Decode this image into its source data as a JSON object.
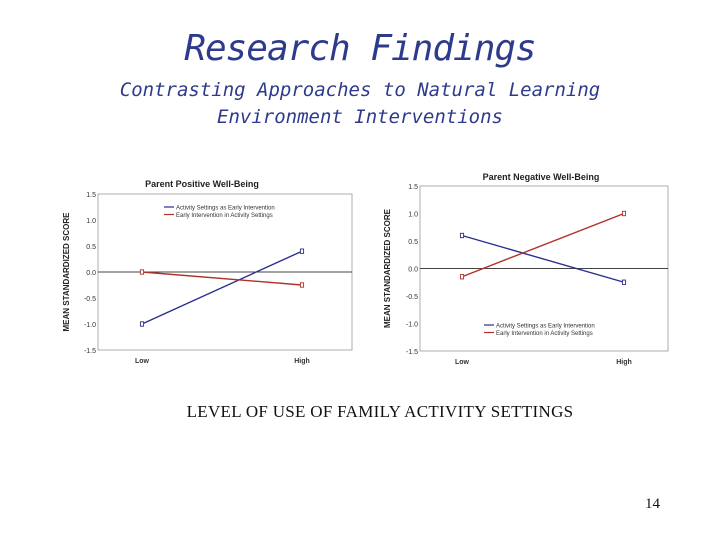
{
  "slide": {
    "title": "Research Findings",
    "subtitle_line1": "Contrasting Approaches to Natural Learning",
    "subtitle_line2": "Environment Interventions",
    "x_caption": "LEVEL OF USE OF FAMILY ACTIVITY SETTINGS",
    "page_number": "14",
    "title_color": "#2e3b8c"
  },
  "chart_data": [
    {
      "type": "line",
      "title": "Parent Positive Well-Being",
      "ylabel": "MEAN STANDARDIZED SCORE",
      "xlabel": "",
      "categories": [
        "Low",
        "High"
      ],
      "ylim": [
        -1.5,
        1.5
      ],
      "yticks": [
        "1.5",
        "1.0",
        "0.5",
        "0.0",
        "-0.5",
        "-1.0",
        "-1.5"
      ],
      "legend_position": "top-left",
      "series": [
        {
          "name": "Activity Settings as Early Intervention",
          "values": [
            -1.0,
            0.4
          ],
          "color": "#2a2f8f"
        },
        {
          "name": "Early Intervention in Activity Settings",
          "values": [
            0.0,
            -0.25
          ],
          "color": "#b0302a"
        }
      ]
    },
    {
      "type": "line",
      "title": "Parent Negative Well-Being",
      "ylabel": "MEAN STANDARDIZED SCORE",
      "xlabel": "",
      "categories": [
        "Low",
        "High"
      ],
      "ylim": [
        -1.5,
        1.5
      ],
      "yticks": [
        "1.5",
        "1.0",
        "0.5",
        "0.0",
        "-0.5",
        "-1.0",
        "-1.5"
      ],
      "legend_position": "bottom-left",
      "series": [
        {
          "name": "Activity Settings as Early Intervention",
          "values": [
            0.6,
            -0.25
          ],
          "color": "#2a2f8f"
        },
        {
          "name": "Early Intervention in Activity Settings",
          "values": [
            -0.15,
            1.0
          ],
          "color": "#b0302a"
        }
      ]
    }
  ]
}
